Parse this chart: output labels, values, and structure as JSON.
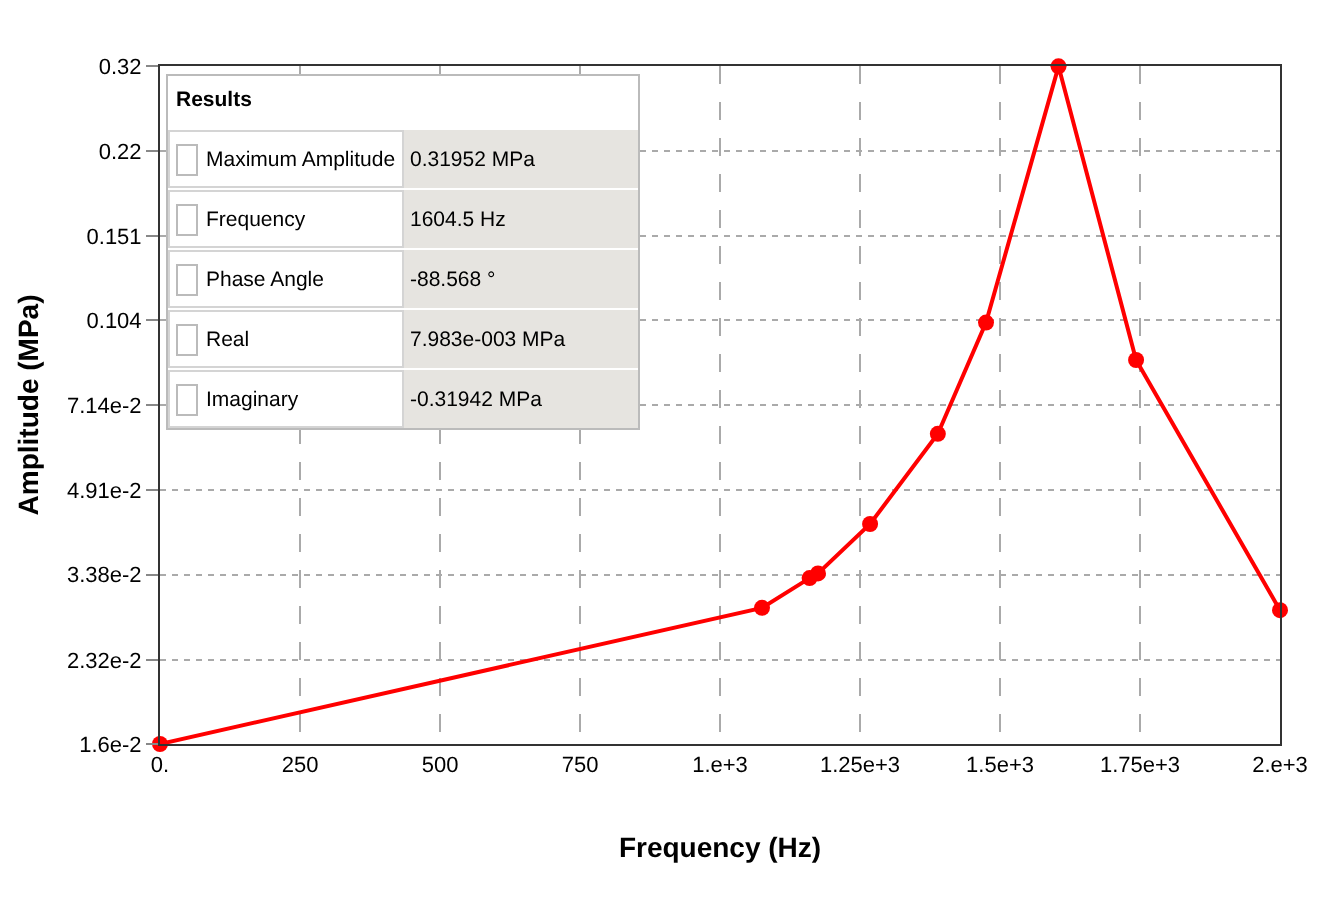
{
  "chart_data": {
    "type": "line",
    "xlabel": "Frequency (Hz)",
    "ylabel": "Amplitude (MPa)",
    "x": [
      0,
      1075,
      1160,
      1175,
      1268,
      1389,
      1475,
      1604.5,
      1743,
      2000
    ],
    "series": [
      {
        "color": "#ff0000",
        "values": [
          0.016,
          0.0292,
          0.0333,
          0.034,
          0.0423,
          0.063,
          0.103,
          0.31952,
          0.0873,
          0.0289
        ]
      }
    ],
    "log": "y",
    "xlim": [
      0,
      2000
    ],
    "xticks": [
      {
        "value": 0,
        "label": "0."
      },
      250,
      500,
      750,
      {
        "value": 1000,
        "label": "1.e+3"
      },
      {
        "value": 1250,
        "label": "1.25e+3"
      },
      {
        "value": 1500,
        "label": "1.5e+3"
      },
      {
        "value": 1750,
        "label": "1.75e+3"
      },
      {
        "value": 2000,
        "label": "2.e+3"
      }
    ],
    "ylim": [
      0.016,
      0.32
    ],
    "yticks": [
      {
        "value": 0.016,
        "label": "1.6e-2"
      },
      {
        "value": 0.0232,
        "label": "2.32e-2"
      },
      {
        "value": 0.0338,
        "label": "3.38e-2"
      },
      {
        "value": 0.0491,
        "label": "4.91e-2"
      },
      {
        "value": 0.0714,
        "label": "7.14e-2"
      },
      0.104,
      0.151,
      0.22,
      0.32
    ],
    "grid": true,
    "marker": "circle",
    "line_style": "solid",
    "annotations": [
      "Results",
      "Maximum Amplitude",
      "0.31952 MPa",
      "Frequency",
      "1604.5 Hz",
      "Phase Angle",
      "-88.568 °",
      "Real",
      "7.983e-003 MPa",
      "Imaginary",
      "-0.31942 MPa"
    ]
  }
}
